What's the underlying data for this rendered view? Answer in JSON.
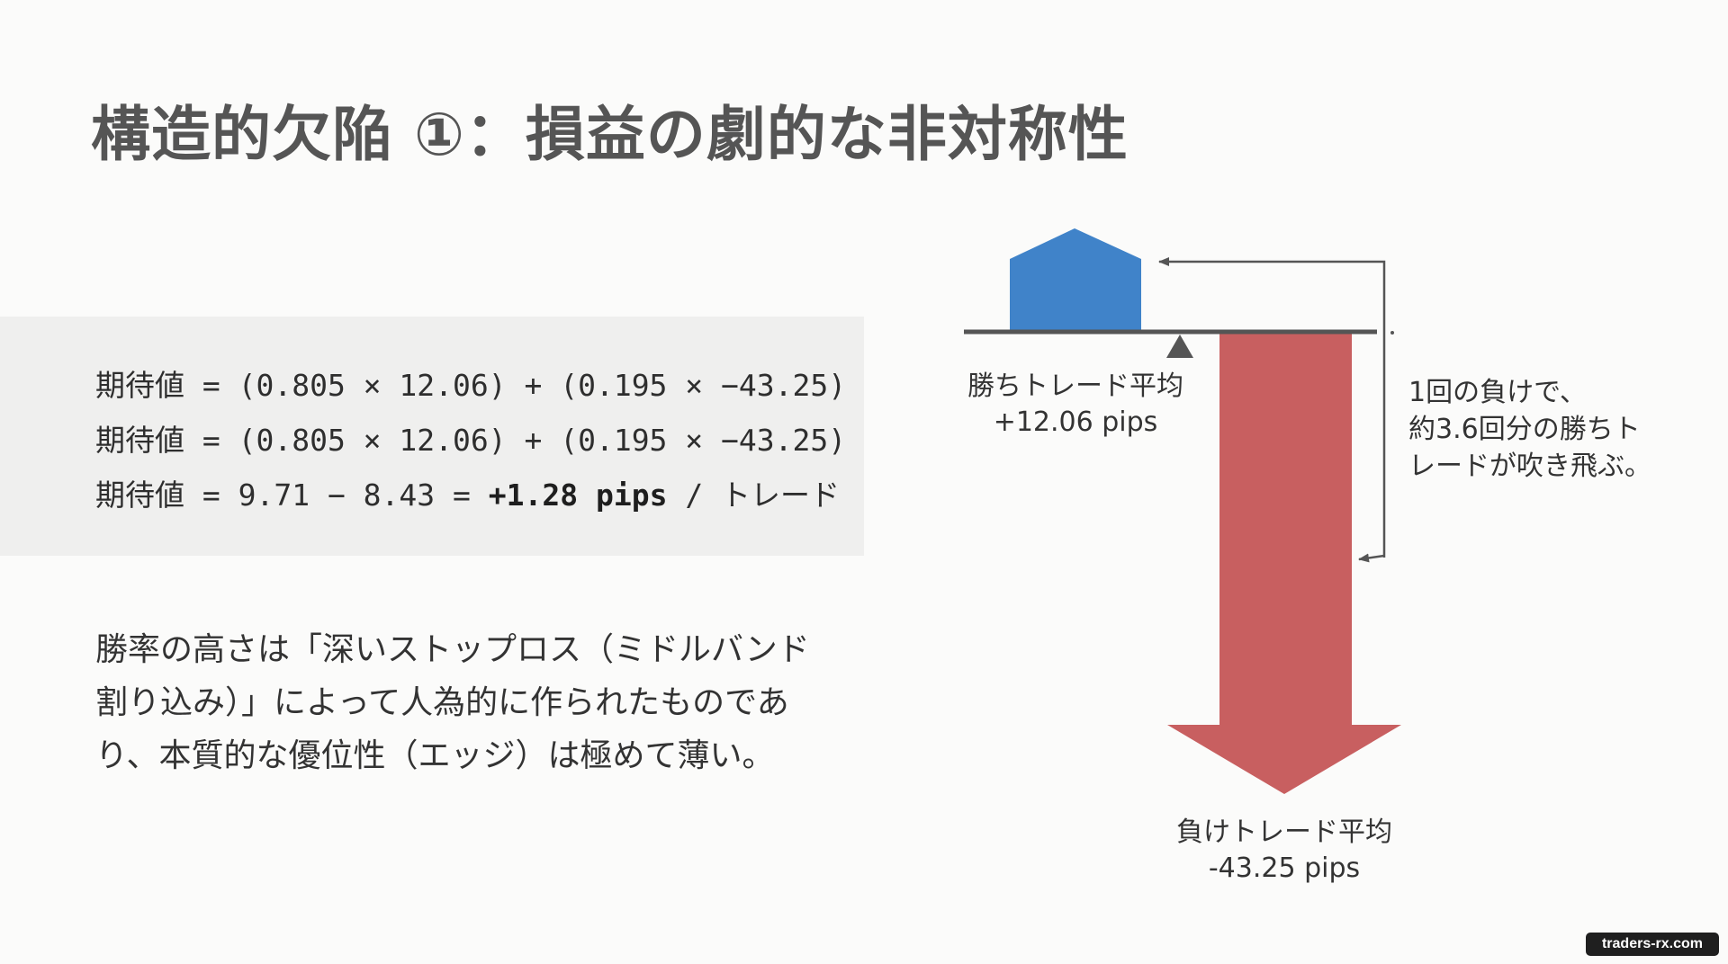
{
  "title": "構造的欠陥 ①：損益の劇的な非対称性",
  "formula": {
    "line1": "期待値 = (0.805 × 12.06) + (0.195 × −43.25)",
    "line2": "期待値 = (0.805 × 12.06) + (0.195 × −43.25)",
    "line3_prefix": "期待値 = 9.71 − 8.43 = ",
    "line3_bold": "+1.28 pips",
    "line3_suffix": " / トレード"
  },
  "body": {
    "line1": "勝率の高さは「深いストップロス（ミドルバンド",
    "line2": "割り込み）」によって人為的に作られたものであ",
    "line3": "り、本質的な優位性（エッジ）は極めて薄い。"
  },
  "diagram": {
    "win_label": "勝ちトレード平均",
    "win_value": "+12.06 pips",
    "loss_label": "負けトレード平均",
    "loss_value": "-43.25 pips",
    "note_line1": "1回の負けで、",
    "note_line2": "約3.6回分の勝ちト",
    "note_line3": "レードが吹き飛ぶ。",
    "win_color": "#4083c9",
    "loss_color": "#c85f60",
    "beam_color": "#555555"
  },
  "watermark": "traders-rx.com"
}
